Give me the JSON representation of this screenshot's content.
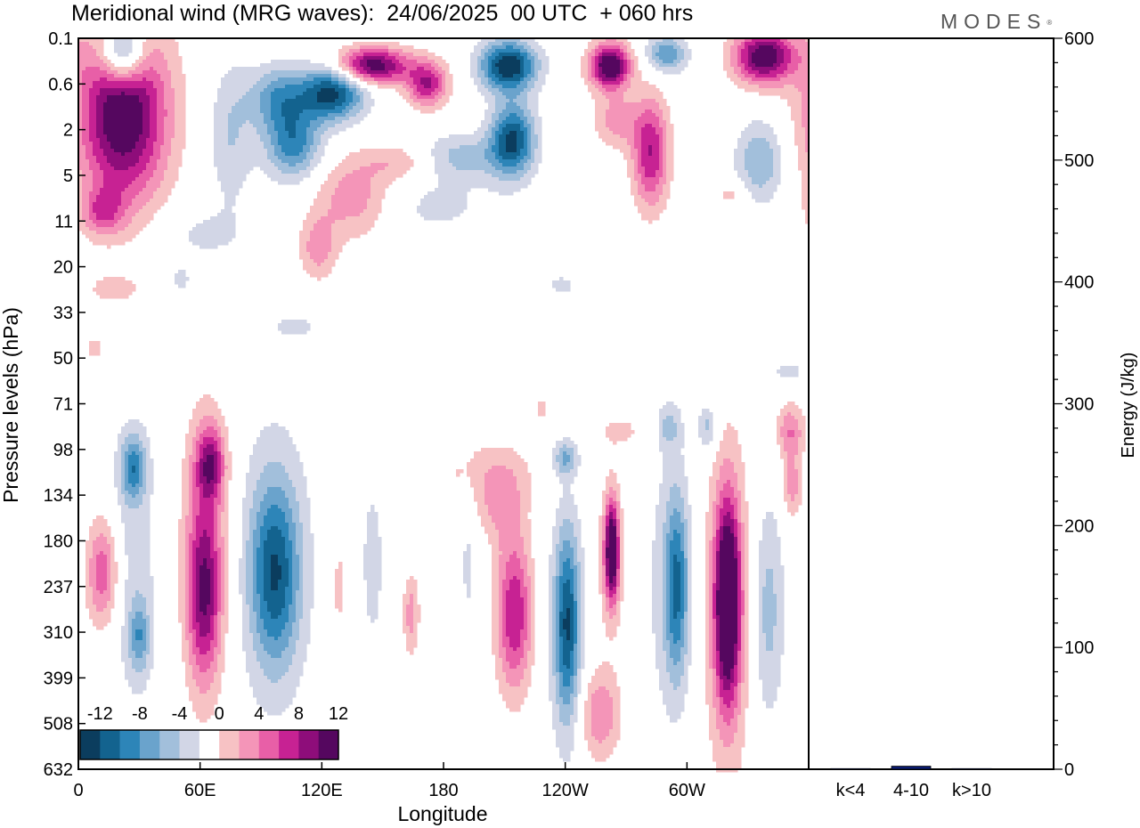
{
  "header": {
    "title": "Meridional wind (MRG waves):  24/06/2025  00 UTC  + 060 hrs",
    "brand": "MODES"
  },
  "chart_data": [
    {
      "type": "heatmap",
      "title": "Meridional wind (MRG waves):  24/06/2025  00 UTC  + 060 hrs",
      "xlabel": "Longitude",
      "ylabel": "Pressure levels (hPa)",
      "x_ticks": [
        "0",
        "60E",
        "120E",
        "180",
        "120W",
        "60W"
      ],
      "x_tick_degrees": [
        0,
        60,
        120,
        180,
        240,
        300
      ],
      "xlim": [
        0,
        360
      ],
      "y_ticks": [
        "0.1",
        "0.6",
        "2",
        "5",
        "11",
        "20",
        "33",
        "50",
        "71",
        "98",
        "134",
        "180",
        "237",
        "310",
        "399",
        "508",
        "632"
      ],
      "colorbar": {
        "labels": [
          "-12",
          "-8",
          "-4",
          "0",
          "4",
          "8",
          "12"
        ],
        "levels": [
          -14,
          -12,
          -10,
          -8,
          -6,
          -4,
          -2,
          2,
          4,
          6,
          8,
          10,
          12,
          14
        ],
        "colors": [
          "#0b3d5e",
          "#13638f",
          "#2d85b8",
          "#6aa3cc",
          "#a2bfdb",
          "#d2d6e6",
          "#ffffff",
          "#f7c2c4",
          "#f495b8",
          "#e85fa7",
          "#c72293",
          "#8e0d7a",
          "#55075f"
        ]
      },
      "blobs": [
        {
          "lon": 22,
          "lev": 1.6,
          "wlon": 22,
          "wlev": 2.0,
          "value": 15
        },
        {
          "lon": 22,
          "lev": 0.3,
          "wlon": 11,
          "wlev": 0.7,
          "value": -13
        },
        {
          "lon": 75,
          "lev": 2.1,
          "wlon": 11,
          "wlev": 1.6,
          "value": -4
        },
        {
          "lon": 98,
          "lev": 1.3,
          "wlon": 14,
          "wlev": 0.7,
          "value": -7
        },
        {
          "lon": 125,
          "lev": 1.2,
          "wlon": 16,
          "wlev": 0.6,
          "value": -13
        },
        {
          "lon": 106,
          "lev": 2.3,
          "wlon": 14,
          "wlev": 0.8,
          "value": -9
        },
        {
          "lon": 145,
          "lev": 0.6,
          "wlon": 18,
          "wlev": 0.4,
          "value": 14
        },
        {
          "lon": 172,
          "lev": 1.0,
          "wlon": 10,
          "wlev": 0.5,
          "value": 10
        },
        {
          "lon": 212,
          "lev": 0.6,
          "wlon": 14,
          "wlev": 0.55,
          "value": -14
        },
        {
          "lon": 214,
          "lev": 2.2,
          "wlon": 11,
          "wlev": 0.8,
          "value": -12
        },
        {
          "lon": 188,
          "lev": 2.6,
          "wlon": 24,
          "wlev": 0.5,
          "value": -5
        },
        {
          "lon": 136,
          "lev": 3.5,
          "wlon": 20,
          "wlev": 0.9,
          "value": 6
        },
        {
          "lon": 118,
          "lev": 4.6,
          "wlon": 9,
          "wlev": 0.7,
          "value": 5
        },
        {
          "lon": 160,
          "lev": 2.7,
          "wlon": 18,
          "wlev": 0.4,
          "value": 4
        },
        {
          "lon": 262,
          "lev": 0.6,
          "wlon": 10,
          "wlev": 0.5,
          "value": 15
        },
        {
          "lon": 282,
          "lev": 2.5,
          "wlon": 9,
          "wlev": 1.2,
          "value": 10
        },
        {
          "lon": 290,
          "lev": 0.35,
          "wlon": 10,
          "wlev": 0.4,
          "value": -8
        },
        {
          "lon": 338,
          "lev": 0.4,
          "wlon": 15,
          "wlev": 0.6,
          "value": 14
        },
        {
          "lon": 336,
          "lev": 2.7,
          "wlon": 12,
          "wlev": 0.9,
          "value": -6
        },
        {
          "lon": 265,
          "lev": 1.8,
          "wlon": 11,
          "wlev": 0.6,
          "value": 5
        },
        {
          "lon": 60,
          "lev": 4.3,
          "wlon": 22,
          "wlev": 0.6,
          "value": -2.5
        },
        {
          "lon": 12,
          "lev": 3.8,
          "wlon": 10,
          "wlev": 0.5,
          "value": 6
        },
        {
          "lon": 172,
          "lev": 3.7,
          "wlon": 38,
          "wlev": 0.7,
          "value": -2.5
        },
        {
          "lon": 322,
          "lev": 3.4,
          "wlon": 8,
          "wlev": 0.3,
          "value": 3
        },
        {
          "lon": 18,
          "lev": 5.5,
          "wlon": 18,
          "wlev": 0.4,
          "value": 2.5
        },
        {
          "lon": 50,
          "lev": 5.3,
          "wlon": 8,
          "wlev": 0.4,
          "value": -2.5
        },
        {
          "lon": 238,
          "lev": 5.4,
          "wlon": 10,
          "wlev": 0.3,
          "value": -2.5
        },
        {
          "lon": 107,
          "lev": 6.3,
          "wlon": 14,
          "wlev": 0.3,
          "value": -2.5
        },
        {
          "lon": 8,
          "lev": 6.8,
          "wlon": 8,
          "wlev": 0.4,
          "value": 2.5
        },
        {
          "lon": 350,
          "lev": 7.3,
          "wlon": 12,
          "wlev": 0.3,
          "value": -2.5
        },
        {
          "lon": 12,
          "lev": 11.7,
          "wlon": 8,
          "wlev": 1.2,
          "value": 8
        },
        {
          "lon": 27,
          "lev": 9.4,
          "wlon": 6,
          "wlev": 0.7,
          "value": -8
        },
        {
          "lon": 30,
          "lev": 13.1,
          "wlon": 5,
          "wlev": 0.8,
          "value": -6
        },
        {
          "lon": 27,
          "lev": 11.5,
          "wlon": 14,
          "wlev": 3.5,
          "value": -3
        },
        {
          "lon": 65,
          "lev": 9.3,
          "wlon": 7,
          "wlev": 0.8,
          "value": 9
        },
        {
          "lon": 62,
          "lev": 12.2,
          "wlon": 8,
          "wlev": 1.9,
          "value": 9
        },
        {
          "lon": 63,
          "lev": 11.0,
          "wlon": 13,
          "wlev": 3.2,
          "value": 5
        },
        {
          "lon": 97,
          "lev": 11.7,
          "wlon": 12,
          "wlev": 2.0,
          "value": -10
        },
        {
          "lon": 95,
          "lev": 11.5,
          "wlon": 24,
          "wlev": 3.8,
          "value": -2.5
        },
        {
          "lon": 128,
          "lev": 12.0,
          "wlon": 7,
          "wlev": 2.5,
          "value": 2.5
        },
        {
          "lon": 145,
          "lev": 11.5,
          "wlon": 6,
          "wlev": 2.0,
          "value": -3
        },
        {
          "lon": 164,
          "lev": 12.6,
          "wlon": 4,
          "wlev": 0.9,
          "value": 5
        },
        {
          "lon": 192,
          "lev": 11.5,
          "wlon": 4,
          "wlev": 1.6,
          "value": -2.5
        },
        {
          "lon": 215,
          "lev": 12.6,
          "wlon": 9,
          "wlev": 1.7,
          "value": 10
        },
        {
          "lon": 200,
          "lev": 9.5,
          "wlon": 30,
          "wlev": 0.8,
          "value": 2.5
        },
        {
          "lon": 208,
          "lev": 10.2,
          "wlon": 11,
          "wlev": 0.9,
          "value": 4
        },
        {
          "lon": 228,
          "lev": 8.1,
          "wlon": 5,
          "wlev": 0.4,
          "value": 2.5
        },
        {
          "lon": 241,
          "lev": 12.8,
          "wlon": 6,
          "wlev": 2.0,
          "value": -10
        },
        {
          "lon": 240,
          "lev": 9.2,
          "wlon": 6,
          "wlev": 0.4,
          "value": -6
        },
        {
          "lon": 240,
          "lev": 13.0,
          "wlon": 12,
          "wlev": 3.2,
          "value": -2.5
        },
        {
          "lon": 263,
          "lev": 11.2,
          "wlon": 3.5,
          "wlev": 1.1,
          "value": 14
        },
        {
          "lon": 262,
          "lev": 11.5,
          "wlon": 8,
          "wlev": 1.8,
          "value": 3
        },
        {
          "lon": 257,
          "lev": 14.8,
          "wlon": 10,
          "wlev": 1.0,
          "value": 6
        },
        {
          "lon": 268,
          "lev": 8.6,
          "wlon": 14,
          "wlev": 0.4,
          "value": 2.5
        },
        {
          "lon": 295,
          "lev": 12.0,
          "wlon": 6,
          "wlev": 2.0,
          "value": -9
        },
        {
          "lon": 290,
          "lev": 12.0,
          "wlon": 13,
          "wlev": 3.5,
          "value": -2.5
        },
        {
          "lon": 291,
          "lev": 8.5,
          "wlon": 6,
          "wlev": 0.5,
          "value": -4
        },
        {
          "lon": 310,
          "lev": 8.5,
          "wlon": 5,
          "wlev": 0.5,
          "value": -5
        },
        {
          "lon": 320,
          "lev": 12.3,
          "wlon": 6,
          "wlev": 2.1,
          "value": 15
        },
        {
          "lon": 320,
          "lev": 12.5,
          "wlon": 12,
          "wlev": 3.8,
          "value": 5
        },
        {
          "lon": 340,
          "lev": 12.5,
          "wlon": 8,
          "wlev": 2.4,
          "value": -5
        },
        {
          "lon": 351,
          "lev": 8.6,
          "wlon": 7,
          "wlev": 0.6,
          "value": 6
        },
        {
          "lon": 352,
          "lev": 9.8,
          "wlon": 5,
          "wlev": 0.7,
          "value": 5
        }
      ]
    },
    {
      "type": "bar",
      "categories": [
        "k<4",
        "4-10",
        "k>10"
      ],
      "values": [
        0.5,
        2.5,
        0.5
      ],
      "bar_color": "#0a1a6e",
      "ylabel": "Energy (J/kg)",
      "ylim": [
        0,
        600
      ],
      "y_ticks": [
        "0",
        "100",
        "200",
        "300",
        "400",
        "500",
        "600"
      ]
    }
  ]
}
